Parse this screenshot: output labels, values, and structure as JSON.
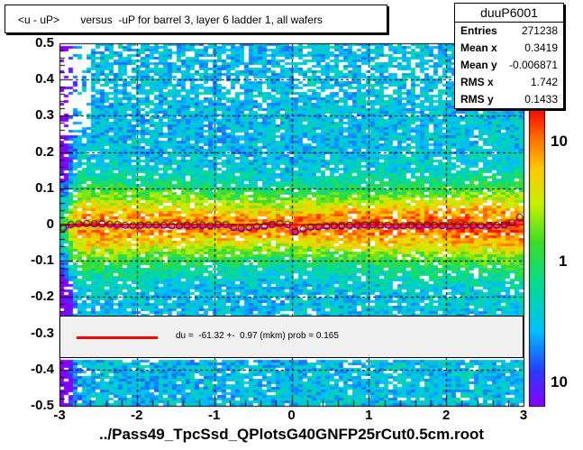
{
  "title": "<u - uP>       versus  -uP for barrel 3, layer 6 ladder 1, all wafers",
  "stats": {
    "name": "duuP6001",
    "rows": [
      {
        "label": "Entries",
        "value": "271238"
      },
      {
        "label": "Mean x",
        "value": "0.3419"
      },
      {
        "label": "Mean y",
        "value": "-0.006871"
      },
      {
        "label": "RMS x",
        "value": "1.742"
      },
      {
        "label": "RMS y",
        "value": "0.1433"
      }
    ]
  },
  "fit_legend": "du =  -61.32 +-  0.97 (mkm) prob = 0.165",
  "colors": {
    "fit_line": "#ff0000",
    "profile_marker": "#000000",
    "palette_low": "#8a00ff",
    "palette_high": "#ff0000"
  },
  "chart_data": {
    "type": "heatmap",
    "title": "<u - uP>       versus  -uP for barrel 3, layer 6 ladder 1, all wafers",
    "xlabel": "../Pass49_TpcSsd_QPlotsG40GNFP25rCut0.5cm.root",
    "ylabel": "",
    "xlim": [
      -3,
      3
    ],
    "ylim": [
      -0.5,
      0.5
    ],
    "x_ticks": [
      "-3",
      "-2",
      "-1",
      "0",
      "1",
      "2",
      "3"
    ],
    "y_ticks": [
      "0.5",
      "0.4",
      "0.3",
      "0.2",
      "0.1",
      "0",
      "-0.1",
      "-0.2",
      "-0.3",
      "-0.4",
      "-0.5"
    ],
    "z_scale": "log",
    "z_ticks": [
      "10",
      "1",
      "10"
    ],
    "grid": true,
    "profile": {
      "x": [
        -2.95,
        -2.85,
        -2.75,
        -2.65,
        -2.55,
        -2.45,
        -2.35,
        -2.25,
        -2.15,
        -2.05,
        -1.95,
        -1.85,
        -1.75,
        -1.65,
        -1.55,
        -1.45,
        -1.35,
        -1.25,
        -1.15,
        -1.05,
        -0.95,
        -0.85,
        -0.75,
        -0.65,
        -0.55,
        -0.45,
        -0.35,
        -0.25,
        -0.15,
        -0.05,
        0.05,
        0.15,
        0.25,
        0.35,
        0.45,
        0.55,
        0.65,
        0.75,
        0.85,
        0.95,
        1.05,
        1.15,
        1.25,
        1.35,
        1.45,
        1.55,
        1.65,
        1.75,
        1.85,
        1.95,
        2.05,
        2.15,
        2.25,
        2.35,
        2.45,
        2.55,
        2.65,
        2.75,
        2.85,
        2.95
      ],
      "y": [
        -0.01,
        0.0,
        0.002,
        0.003,
        0.002,
        0.002,
        0.001,
        0.0,
        -0.002,
        -0.003,
        -0.002,
        -0.001,
        -0.001,
        -0.002,
        -0.003,
        -0.003,
        -0.002,
        -0.001,
        -0.002,
        -0.003,
        0.0,
        0.0,
        -0.008,
        -0.01,
        -0.008,
        -0.005,
        -0.004,
        0.0,
        0.003,
        0.0,
        -0.02,
        -0.012,
        -0.007,
        -0.006,
        -0.004,
        -0.003,
        -0.003,
        -0.002,
        -0.002,
        -0.001,
        -0.001,
        -0.002,
        -0.002,
        -0.003,
        -0.003,
        -0.002,
        -0.002,
        -0.001,
        -0.002,
        -0.003,
        -0.003,
        -0.003,
        -0.002,
        -0.002,
        -0.003,
        -0.002,
        -0.002,
        -0.001,
        0.005,
        0.02
      ]
    },
    "fit": {
      "label": "du =  -61.32 +-  0.97 (mkm) prob = 0.165",
      "value_um": -61.32,
      "error_um": 0.97,
      "prob": 0.165
    }
  }
}
